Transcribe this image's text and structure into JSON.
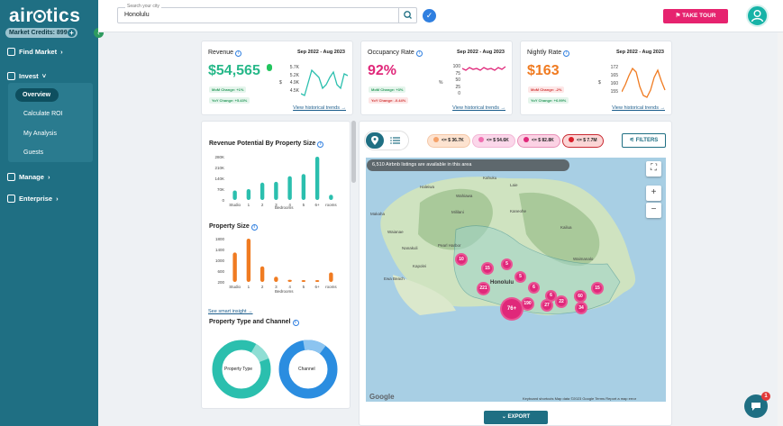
{
  "sidebar": {
    "logo": "airbtics",
    "credits_label": "Market Credits: 899",
    "nav": [
      {
        "label": "Find Market",
        "chevron": "›"
      },
      {
        "label": "Invest",
        "chevron": "˅"
      },
      {
        "label": "Manage",
        "chevron": "›"
      },
      {
        "label": "Enterprise",
        "chevron": "›"
      }
    ],
    "invest_items": [
      "Overview",
      "Calculate ROI",
      "My Analysis",
      "Guests"
    ]
  },
  "topbar": {
    "search_label": "Search your city",
    "search_value": "Honolulu",
    "tour_label": "TAKE TOUR"
  },
  "kpis": [
    {
      "title": "Revenue",
      "period": "Sep 2022 - Aug 2023",
      "value": "$54,565",
      "value_color": "#27b889",
      "mom": "MoM Change: +1%",
      "yoy": "YoY Change: +5.43%",
      "mom_color": "#2e9b5f",
      "yoy_color": "#2e9b5f",
      "axis": [
        "5.7K",
        "5.2K",
        "4.9K",
        "4.5K"
      ],
      "axis_unit": "$",
      "link": "View historical trends →",
      "line_color": "#2bbfae"
    },
    {
      "title": "Occupancy Rate",
      "period": "Sep 2022 - Aug 2023",
      "value": "92%",
      "value_color": "#e0287a",
      "mom": "MoM Change: +3%",
      "yoy": "YoY Change: -0.44%",
      "mom_color": "#2e9b5f",
      "yoy_color": "#d23b3b",
      "axis": [
        "100",
        "75",
        "50",
        "25",
        "0"
      ],
      "axis_unit": "%",
      "link": "View historical trends →",
      "line_color": "#e0287a"
    },
    {
      "title": "Nightly Rate",
      "period": "Sep 2022 - Aug 2023",
      "value": "$163",
      "value_color": "#f07b21",
      "mom": "MoM Change: -2%",
      "yoy": "YoY Change: +6.99%",
      "mom_color": "#d23b3b",
      "yoy_color": "#2e9b5f",
      "axis": [
        "172",
        "165",
        "160",
        "155"
      ],
      "axis_unit": "$",
      "link": "View historical trends →",
      "line_color": "#f07b21"
    }
  ],
  "left_panel": {
    "revenue_by_size_title": "Revenue Potential By Property Size",
    "revenue_axis": [
      "280K",
      "210K",
      "140K",
      "70K",
      "0"
    ],
    "revenue_categories": [
      "Studio",
      "1",
      "2",
      "3",
      "4",
      "5",
      "6+",
      "rooms"
    ],
    "revenue_values": [
      0.22,
      0.25,
      0.4,
      0.42,
      0.55,
      0.6,
      1.0,
      0.12
    ],
    "bedrooms_label": "Bedrooms",
    "property_size_title": "Property Size",
    "size_axis": [
      "1800",
      "1400",
      "1000",
      "600",
      "200"
    ],
    "size_categories": [
      "Studio",
      "1",
      "2",
      "3",
      "4",
      "5",
      "6+",
      "rooms"
    ],
    "size_values": [
      0.68,
      1.0,
      0.36,
      0.12,
      0.05,
      0.04,
      0.03,
      0.22
    ],
    "smart_insight_link": "See smart insight →",
    "type_channel_title": "Property Type and Channel",
    "donut1_label": "Property Type",
    "donut2_label": "Channel"
  },
  "map": {
    "pills": [
      {
        "label": "<= $ 36.7K",
        "bg": "#fde3d0",
        "dot": "#f5a26a",
        "border": "#f5c8a8"
      },
      {
        "label": "<= $ 54.6K",
        "bg": "#fbd7ea",
        "dot": "#f06fb0",
        "border": "#f3b7d6"
      },
      {
        "label": "<= $ 82.8K",
        "bg": "#fbd2e4",
        "dot": "#e0287a",
        "border": "#e991b8"
      },
      {
        "label": "<= $ 7.7M",
        "bg": "#fbd5d5",
        "dot": "#d91f2a",
        "border": "#c92a32"
      }
    ],
    "filters_label": "FILTERS",
    "note": "6,510 Airbnb listings are available in this area",
    "clusters": [
      "10",
      "15",
      "5",
      "5",
      "221",
      "6",
      "6",
      "190",
      "27",
      "22",
      "60",
      "34",
      "15",
      "76+"
    ],
    "places": [
      "Makaha",
      "Waianae",
      "Nanakuli",
      "Kapolei",
      "Ewa Beach",
      "Pearl Harbor",
      "Honolulu",
      "Kaneohe",
      "Kailua",
      "Waimanalo",
      "Haleiwa",
      "Mililani",
      "Wahiawa",
      "Laie",
      "Kahuku"
    ],
    "google": "Google",
    "attribution": "Keyboard shortcuts   Map data ©2023 Google   Terms   Report a map error"
  },
  "export_label": "EXPORT",
  "chat_badge": "1"
}
